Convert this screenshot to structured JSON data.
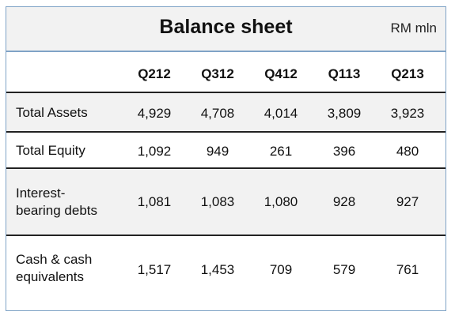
{
  "title": "Balance sheet",
  "unit": "RM mln",
  "columns": [
    "Q212",
    "Q312",
    "Q412",
    "Q113",
    "Q213"
  ],
  "rows": [
    {
      "label_lines": [
        "Total Assets"
      ],
      "values": [
        "4,929",
        "4,708",
        "4,014",
        "3,809",
        "3,923"
      ]
    },
    {
      "label_lines": [
        "Total Equity"
      ],
      "values": [
        "1,092",
        "949",
        "261",
        "396",
        "480"
      ]
    },
    {
      "label_lines": [
        "Interest-",
        "bearing debts"
      ],
      "values": [
        "1,081",
        "1,083",
        "1,080",
        "928",
        "927"
      ]
    },
    {
      "label_lines": [
        "Cash & cash",
        "equivalents"
      ],
      "values": [
        "1,517",
        "1,453",
        "709",
        "579",
        "761"
      ]
    }
  ]
}
